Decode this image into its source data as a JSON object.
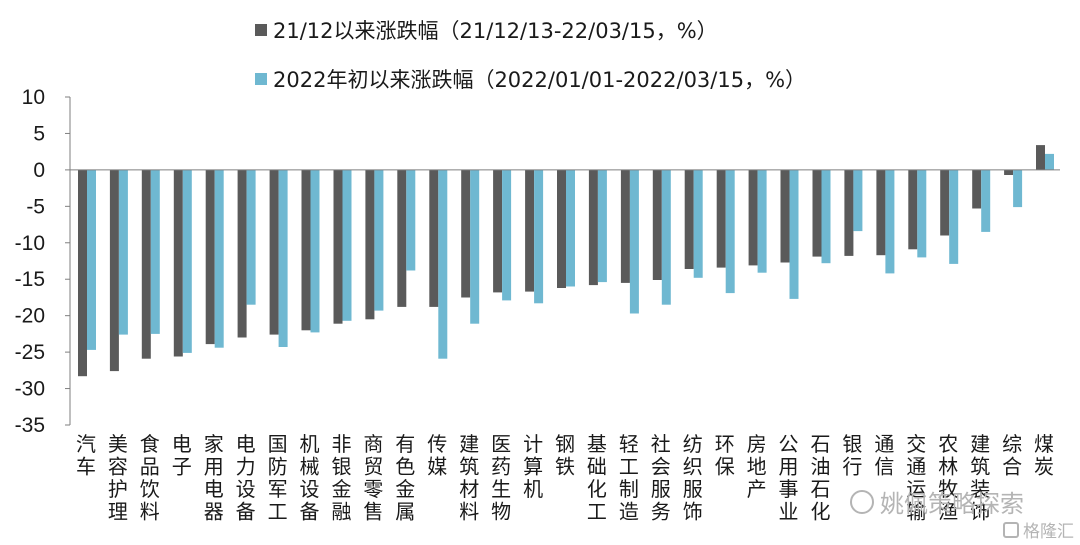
{
  "chart_data": {
    "type": "bar",
    "legend": [
      {
        "name": "21/12以来涨跌幅（21/12/13-22/03/15，%）",
        "color": "#5a5a5a"
      },
      {
        "name": "2022年初以来涨跌幅（2022/01/01-2022/03/15，%）",
        "color": "#6fb8d1"
      }
    ],
    "categories": [
      "汽车",
      "美容护理",
      "食品饮料",
      "电子",
      "家用电器",
      "电力设备",
      "国防军工",
      "机械设备",
      "非银金融",
      "商贸零售",
      "有色金属",
      "传媒",
      "建筑材料",
      "医药生物",
      "计算机",
      "钢铁",
      "基础化工",
      "轻工制造",
      "社会服务",
      "纺织服饰",
      "环保",
      "房地产",
      "公用事业",
      "石油石化",
      "银行",
      "通信",
      "交通运输",
      "农林牧渔",
      "建筑装饰",
      "综合",
      "煤炭"
    ],
    "series": [
      {
        "name": "21/12以来涨跌幅（21/12/13-22/03/15，%）",
        "values": [
          -28.3,
          -27.6,
          -25.9,
          -25.6,
          -23.9,
          -23.0,
          -22.6,
          -22.0,
          -21.1,
          -20.5,
          -18.8,
          -18.8,
          -17.5,
          -16.8,
          -16.7,
          -16.2,
          -15.8,
          -15.5,
          -15.1,
          -13.6,
          -13.4,
          -13.1,
          -12.7,
          -11.9,
          -11.8,
          -11.7,
          -10.9,
          -9.0,
          -5.3,
          -0.7,
          3.4
        ]
      },
      {
        "name": "2022年初以来涨跌幅（2022/01/01-2022/03/15，%）",
        "values": [
          -24.7,
          -22.6,
          -22.5,
          -25.1,
          -24.4,
          -18.5,
          -24.3,
          -22.3,
          -20.7,
          -19.3,
          -13.8,
          -25.9,
          -21.1,
          -17.9,
          -18.3,
          -16.0,
          -15.4,
          -19.7,
          -18.5,
          -14.8,
          -16.9,
          -14.1,
          -17.7,
          -12.8,
          -8.4,
          -14.2,
          -12.0,
          -12.9,
          -8.5,
          -5.1,
          2.2
        ]
      }
    ],
    "yticks": [
      10,
      5,
      0,
      -5,
      -10,
      -15,
      -20,
      -25,
      -30,
      -35
    ],
    "ylim": [
      -35,
      10
    ],
    "grid": false,
    "legend_position": "top"
  },
  "watermark": {
    "text1": "姚佩策略探索",
    "text2": "格隆汇"
  }
}
